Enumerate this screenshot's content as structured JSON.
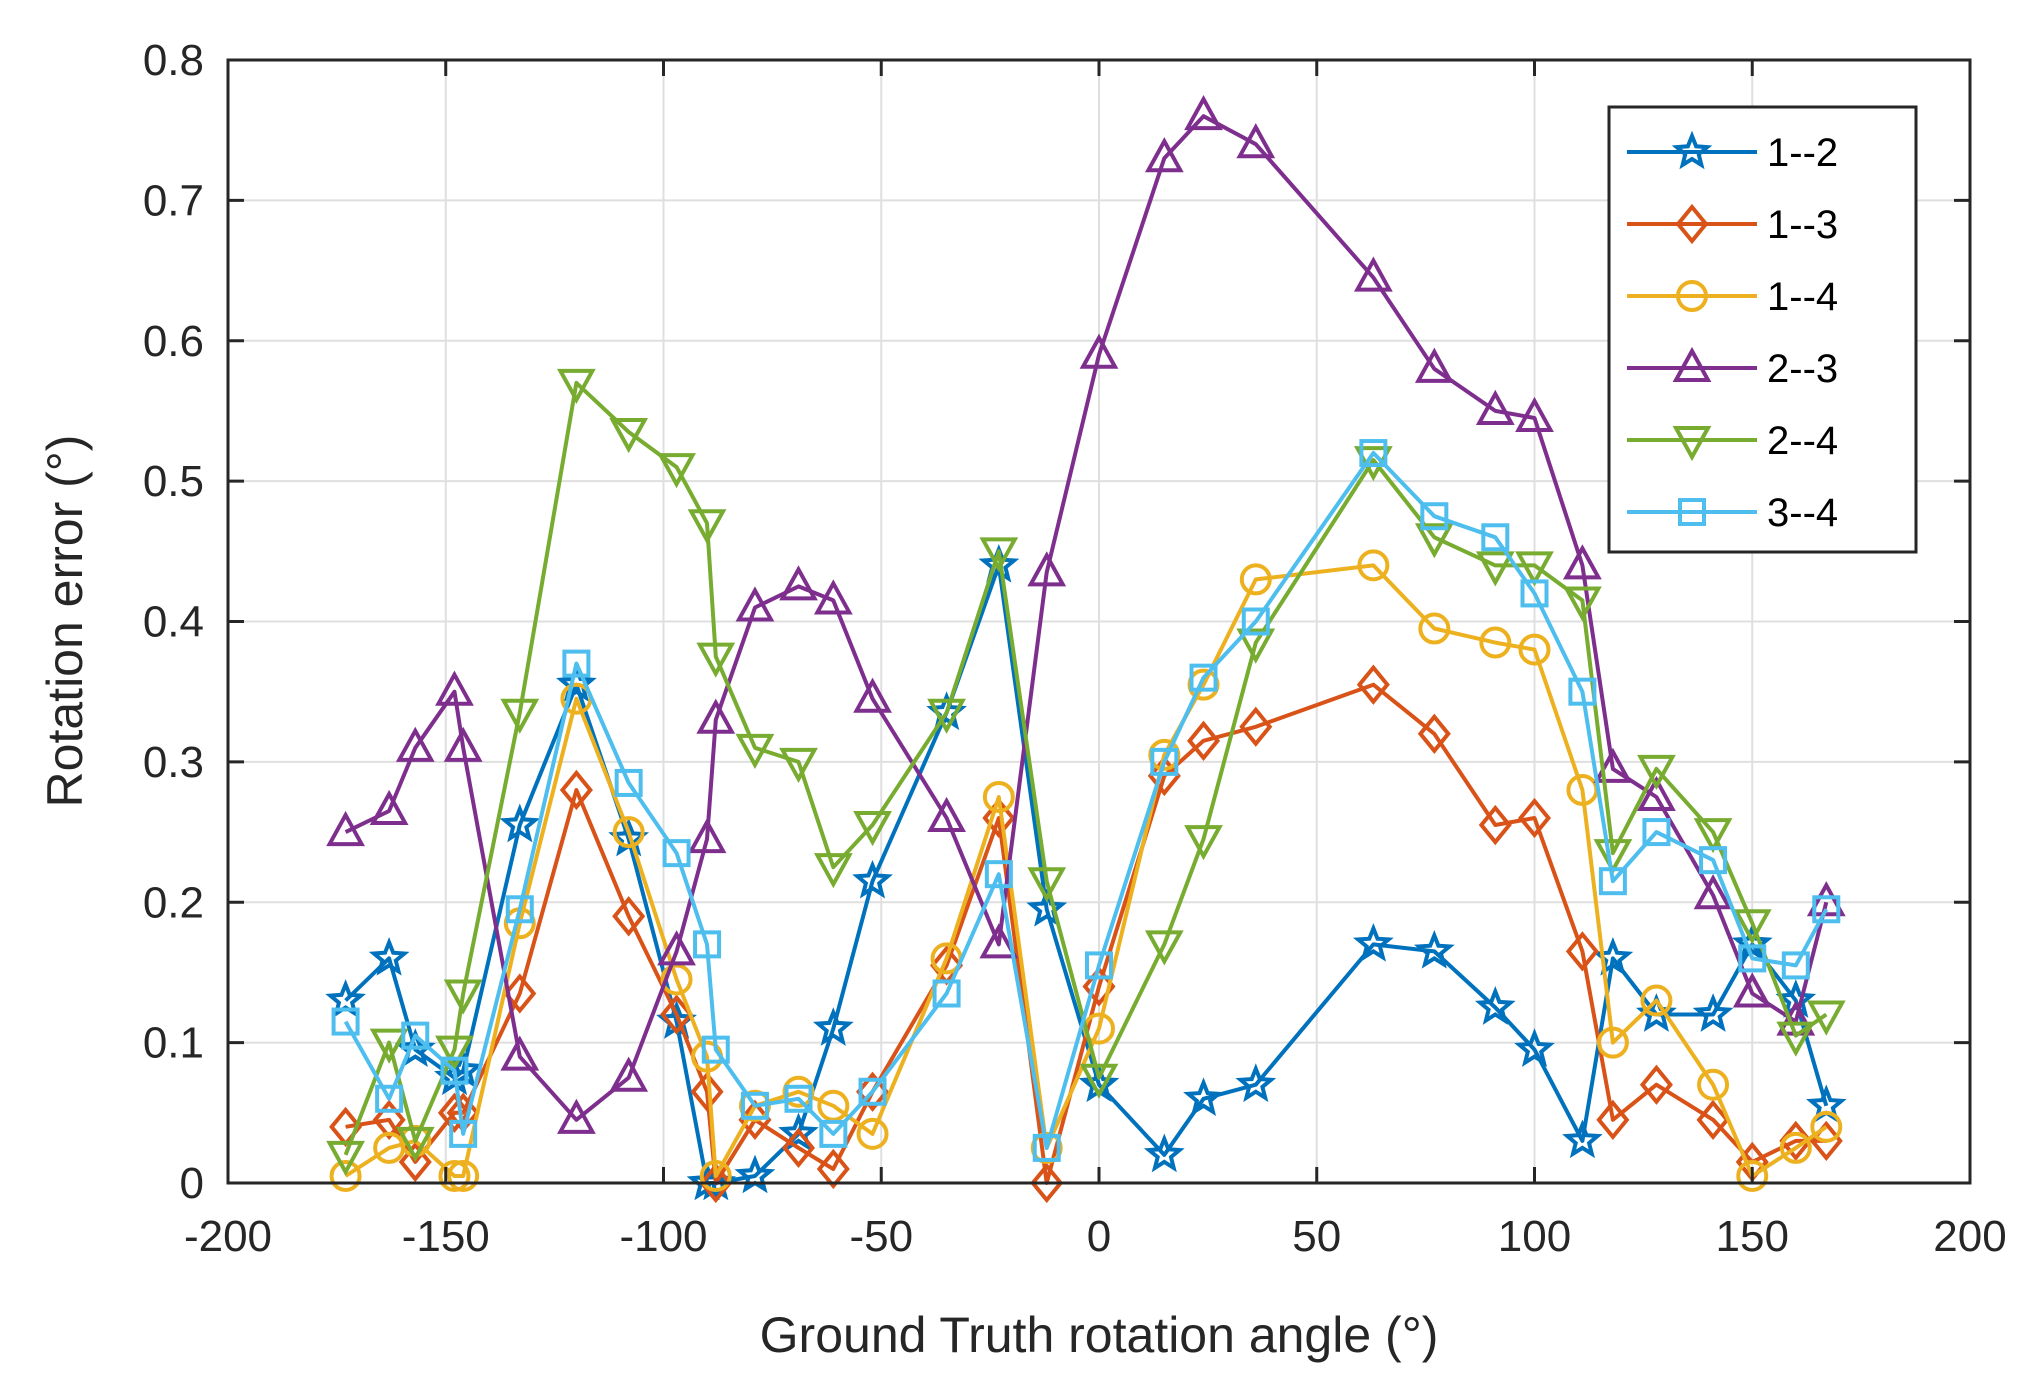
{
  "chart_data": {
    "type": "line",
    "title": "",
    "xlabel": "Ground Truth rotation angle (°)",
    "ylabel": "Rotation error (°)",
    "xlim": [
      -200,
      200
    ],
    "ylim": [
      0,
      0.8
    ],
    "xticks": [
      -200,
      -150,
      -100,
      -50,
      0,
      50,
      100,
      150,
      200
    ],
    "xtick_labels": [
      "-200",
      "-150",
      "-100",
      "-50",
      "0",
      "50",
      "100",
      "150",
      "200"
    ],
    "yticks": [
      0,
      0.1,
      0.2,
      0.3,
      0.4,
      0.5,
      0.6,
      0.7,
      0.8
    ],
    "ytick_labels": [
      "0",
      "0.1",
      "0.2",
      "0.3",
      "0.4",
      "0.5",
      "0.6",
      "0.7",
      "0.8"
    ],
    "grid": true,
    "legend_position": "top-right",
    "series": [
      {
        "name": "1--2",
        "color": "#0072BD",
        "marker": "star",
        "x": [
          -173,
          -163,
          -157,
          -148,
          -146,
          -133,
          -120,
          -108,
          -97,
          -90,
          -88,
          -79,
          -69,
          -61,
          -52,
          -35,
          -23,
          -12,
          0,
          15,
          24,
          36,
          63,
          77,
          91,
          100,
          111,
          118,
          128,
          141,
          150,
          160,
          167
        ],
        "y": [
          0.13,
          0.16,
          0.095,
          0.075,
          0.08,
          0.255,
          0.355,
          0.245,
          0.115,
          0.0,
          0.0,
          0.005,
          0.035,
          0.11,
          0.215,
          0.335,
          0.44,
          0.195,
          0.07,
          0.02,
          0.06,
          0.07,
          0.17,
          0.165,
          0.125,
          0.095,
          0.03,
          0.16,
          0.12,
          0.12,
          0.17,
          0.13,
          0.055
        ]
      },
      {
        "name": "1--3",
        "color": "#D95319",
        "marker": "diamond",
        "x": [
          -173,
          -163,
          -157,
          -148,
          -146,
          -133,
          -120,
          -108,
          -97,
          -90,
          -88,
          -79,
          -69,
          -61,
          -52,
          -35,
          -23,
          -12,
          0,
          15,
          24,
          36,
          63,
          77,
          91,
          100,
          111,
          118,
          128,
          141,
          150,
          160,
          167
        ],
        "y": [
          0.04,
          0.045,
          0.015,
          0.05,
          0.05,
          0.135,
          0.28,
          0.19,
          0.12,
          0.065,
          0.0,
          0.045,
          0.025,
          0.01,
          0.065,
          0.155,
          0.26,
          0.0,
          0.14,
          0.29,
          0.315,
          0.325,
          0.355,
          0.32,
          0.255,
          0.26,
          0.165,
          0.045,
          0.07,
          0.045,
          0.015,
          0.03,
          0.03
        ]
      },
      {
        "name": "1--4",
        "color": "#EDB120",
        "marker": "circle",
        "x": [
          -173,
          -163,
          -157,
          -148,
          -146,
          -133,
          -120,
          -108,
          -97,
          -90,
          -88,
          -79,
          -69,
          -61,
          -52,
          -35,
          -23,
          -12,
          0,
          15,
          24,
          36,
          63,
          77,
          91,
          100,
          111,
          118,
          128,
          141,
          150,
          160,
          167
        ],
        "y": [
          0.005,
          0.025,
          0.03,
          0.005,
          0.005,
          0.185,
          0.345,
          0.25,
          0.145,
          0.09,
          0.005,
          0.055,
          0.065,
          0.055,
          0.035,
          0.16,
          0.275,
          0.025,
          0.11,
          0.305,
          0.355,
          0.43,
          0.44,
          0.395,
          0.385,
          0.38,
          0.28,
          0.1,
          0.13,
          0.07,
          0.005,
          0.025,
          0.04
        ]
      },
      {
        "name": "2--3",
        "color": "#7E2F8E",
        "marker": "triangle-up",
        "x": [
          -173,
          -163,
          -157,
          -148,
          -146,
          -133,
          -120,
          -108,
          -97,
          -90,
          -88,
          -79,
          -69,
          -61,
          -52,
          -35,
          -23,
          -12,
          0,
          15,
          24,
          36,
          63,
          77,
          91,
          100,
          111,
          118,
          128,
          141,
          150,
          160,
          167
        ],
        "y": [
          0.25,
          0.265,
          0.31,
          0.35,
          0.31,
          0.09,
          0.045,
          0.075,
          0.165,
          0.245,
          0.33,
          0.41,
          0.425,
          0.415,
          0.345,
          0.26,
          0.17,
          0.435,
          0.59,
          0.73,
          0.76,
          0.74,
          0.645,
          0.58,
          0.55,
          0.545,
          0.44,
          0.295,
          0.275,
          0.205,
          0.135,
          0.115,
          0.2
        ]
      },
      {
        "name": "2--4",
        "color": "#77AC30",
        "marker": "triangle-down",
        "x": [
          -173,
          -163,
          -157,
          -148,
          -146,
          -133,
          -120,
          -108,
          -97,
          -90,
          -88,
          -79,
          -69,
          -61,
          -52,
          -35,
          -23,
          -12,
          0,
          15,
          24,
          36,
          63,
          77,
          91,
          100,
          111,
          118,
          128,
          141,
          150,
          160,
          167
        ],
        "y": [
          0.02,
          0.1,
          0.03,
          0.095,
          0.135,
          0.335,
          0.57,
          0.535,
          0.51,
          0.47,
          0.375,
          0.31,
          0.3,
          0.225,
          0.255,
          0.335,
          0.45,
          0.215,
          0.075,
          0.17,
          0.245,
          0.385,
          0.515,
          0.46,
          0.44,
          0.44,
          0.415,
          0.235,
          0.295,
          0.25,
          0.185,
          0.105,
          0.12
        ]
      },
      {
        "name": "3--4",
        "color": "#4DBEEE",
        "marker": "square",
        "x": [
          -173,
          -163,
          -157,
          -148,
          -146,
          -133,
          -120,
          -108,
          -97,
          -90,
          -88,
          -79,
          -69,
          -61,
          -52,
          -35,
          -23,
          -12,
          0,
          15,
          24,
          36,
          63,
          77,
          91,
          100,
          111,
          118,
          128,
          141,
          150,
          160,
          167
        ],
        "y": [
          0.115,
          0.06,
          0.105,
          0.08,
          0.035,
          0.195,
          0.37,
          0.285,
          0.235,
          0.17,
          0.095,
          0.055,
          0.06,
          0.035,
          0.065,
          0.135,
          0.22,
          0.025,
          0.155,
          0.3,
          0.36,
          0.4,
          0.52,
          0.475,
          0.46,
          0.42,
          0.35,
          0.215,
          0.25,
          0.23,
          0.16,
          0.155,
          0.195
        ]
      }
    ]
  }
}
